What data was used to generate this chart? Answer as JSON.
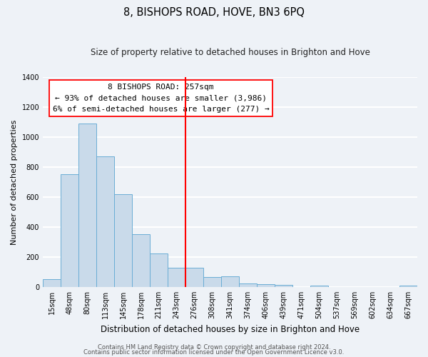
{
  "title": "8, BISHOPS ROAD, HOVE, BN3 6PQ",
  "subtitle": "Size of property relative to detached houses in Brighton and Hove",
  "xlabel": "Distribution of detached houses by size in Brighton and Hove",
  "ylabel": "Number of detached properties",
  "bar_labels": [
    "15sqm",
    "48sqm",
    "80sqm",
    "113sqm",
    "145sqm",
    "178sqm",
    "211sqm",
    "243sqm",
    "276sqm",
    "308sqm",
    "341sqm",
    "374sqm",
    "406sqm",
    "439sqm",
    "471sqm",
    "504sqm",
    "537sqm",
    "569sqm",
    "602sqm",
    "634sqm",
    "667sqm"
  ],
  "bar_values": [
    50,
    750,
    1090,
    870,
    620,
    350,
    225,
    130,
    130,
    65,
    70,
    25,
    20,
    15,
    0,
    10,
    0,
    0,
    0,
    0,
    10
  ],
  "bar_color": "#c9daea",
  "bar_edge_color": "#6aadd5",
  "ylim": [
    0,
    1400
  ],
  "yticks": [
    0,
    200,
    400,
    600,
    800,
    1000,
    1200,
    1400
  ],
  "vline_x": 7.5,
  "vline_color": "red",
  "annotation_line1": "8 BISHOPS ROAD: 257sqm",
  "annotation_line2": "← 93% of detached houses are smaller (3,986)",
  "annotation_line3": "6% of semi-detached houses are larger (277) →",
  "footer_line1": "Contains HM Land Registry data © Crown copyright and database right 2024.",
  "footer_line2": "Contains public sector information licensed under the Open Government Licence v3.0.",
  "bg_color": "#eef2f7",
  "plot_bg_color": "#eef2f7",
  "grid_color": "white",
  "title_fontsize": 10.5,
  "subtitle_fontsize": 8.5,
  "xlabel_fontsize": 8.5,
  "ylabel_fontsize": 8,
  "tick_fontsize": 7,
  "footer_fontsize": 6,
  "annot_fontsize": 8
}
